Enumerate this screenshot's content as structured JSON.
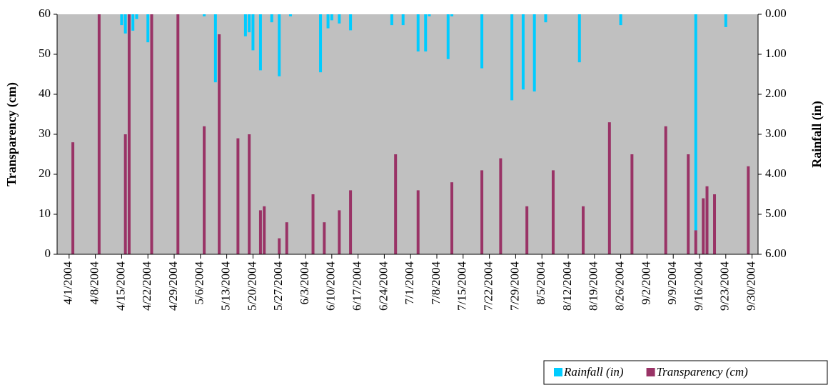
{
  "chart_data": {
    "type": "bar",
    "y_label": "Transparency (cm)",
    "y2_label": "Rainfall (in)",
    "xlim": [
      -3.2,
      183.6
    ],
    "xticks": [
      {
        "value": 0,
        "label": "4/1/2004"
      },
      {
        "value": 7,
        "label": "4/8/2004"
      },
      {
        "value": 14,
        "label": "4/15/2004"
      },
      {
        "value": 21,
        "label": "4/22/2004"
      },
      {
        "value": 28,
        "label": "4/29/2004"
      },
      {
        "value": 35,
        "label": "5/6/2004"
      },
      {
        "value": 42,
        "label": "5/13/2004"
      },
      {
        "value": 49,
        "label": "5/20/2004"
      },
      {
        "value": 56,
        "label": "5/27/2004"
      },
      {
        "value": 63,
        "label": "6/3/2004"
      },
      {
        "value": 70,
        "label": "6/10/2004"
      },
      {
        "value": 77,
        "label": "6/17/2004"
      },
      {
        "value": 84,
        "label": "6/24/2004"
      },
      {
        "value": 91,
        "label": "7/1/2004"
      },
      {
        "value": 98,
        "label": "7/8/2004"
      },
      {
        "value": 105,
        "label": "7/15/2004"
      },
      {
        "value": 112,
        "label": "7/22/2004"
      },
      {
        "value": 119,
        "label": "7/29/2004"
      },
      {
        "value": 126,
        "label": "8/5/2004"
      },
      {
        "value": 133,
        "label": "8/12/2004"
      },
      {
        "value": 140,
        "label": "8/19/2004"
      },
      {
        "value": 147,
        "label": "8/26/2004"
      },
      {
        "value": 154,
        "label": "9/2/2004"
      },
      {
        "value": 161,
        "label": "9/9/2004"
      },
      {
        "value": 168,
        "label": "9/16/2004"
      },
      {
        "value": 175,
        "label": "9/23/2004"
      },
      {
        "value": 182,
        "label": "9/30/2004"
      }
    ],
    "ylim": [
      0,
      60
    ],
    "yticks": [
      0,
      10,
      20,
      30,
      40,
      50,
      60
    ],
    "y2lim": [
      6,
      0
    ],
    "y2ticks": [
      {
        "value": 0,
        "label": "0.00"
      },
      {
        "value": 1,
        "label": "1.00"
      },
      {
        "value": 2,
        "label": "2.00"
      },
      {
        "value": 3,
        "label": "3.00"
      },
      {
        "value": 4,
        "label": "4.00"
      },
      {
        "value": 5,
        "label": "5.00"
      },
      {
        "value": 6,
        "label": "6.00"
      }
    ],
    "background": "#c0c0c0",
    "legend": "bottom-right",
    "series": [
      {
        "name": "Rainfall (in)",
        "color": "#00ccff",
        "axis": "y2",
        "x": [
          14,
          15,
          17,
          18,
          21,
          36,
          39,
          47,
          48,
          49,
          51,
          54,
          56,
          59,
          67,
          69,
          70,
          72,
          75,
          86,
          89,
          93,
          95,
          96,
          101,
          102,
          110,
          118,
          121,
          124,
          127,
          136,
          147,
          167,
          175
        ],
        "values": [
          0.27,
          0.48,
          0.41,
          0.12,
          0.7,
          0.05,
          1.7,
          0.55,
          0.45,
          0.9,
          1.4,
          0.2,
          1.55,
          0.05,
          1.45,
          0.35,
          0.15,
          0.23,
          0.4,
          0.27,
          0.27,
          0.93,
          0.93,
          0.05,
          1.12,
          0.05,
          1.35,
          2.15,
          1.88,
          1.93,
          0.2,
          1.2,
          0.27,
          5.4,
          0.32
        ]
      },
      {
        "name": "Transparency (cm)",
        "color": "#993366",
        "x": [
          1,
          8,
          15,
          16,
          22,
          29,
          36,
          40,
          45,
          48,
          51,
          52,
          56,
          58,
          65,
          68,
          72,
          75,
          87,
          93,
          102,
          110,
          115,
          122,
          129,
          137,
          144,
          150,
          159,
          165,
          167,
          169,
          170,
          172,
          181
        ],
        "values": [
          28,
          60,
          30,
          60,
          60,
          60,
          32,
          55,
          29,
          30,
          11,
          12,
          4,
          8,
          15,
          8,
          11,
          16,
          25,
          16,
          18,
          21,
          24,
          12,
          21,
          12,
          33,
          25,
          32,
          25,
          6,
          14,
          17,
          15,
          22
        ]
      }
    ]
  }
}
